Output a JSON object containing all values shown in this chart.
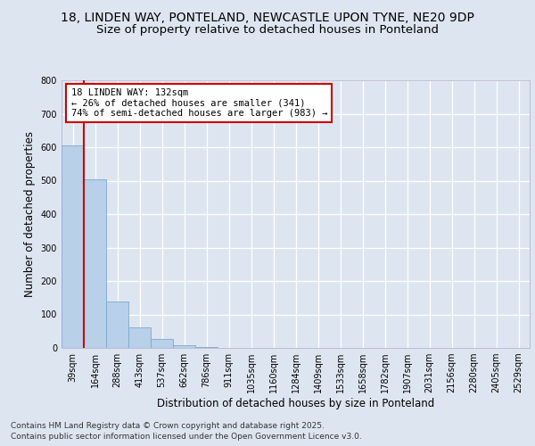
{
  "title_line1": "18, LINDEN WAY, PONTELAND, NEWCASTLE UPON TYNE, NE20 9DP",
  "title_line2": "Size of property relative to detached houses in Ponteland",
  "xlabel": "Distribution of detached houses by size in Ponteland",
  "ylabel": "Number of detached properties",
  "categories": [
    "39sqm",
    "164sqm",
    "288sqm",
    "413sqm",
    "537sqm",
    "662sqm",
    "786sqm",
    "911sqm",
    "1035sqm",
    "1160sqm",
    "1284sqm",
    "1409sqm",
    "1533sqm",
    "1658sqm",
    "1782sqm",
    "1907sqm",
    "2031sqm",
    "2156sqm",
    "2280sqm",
    "2405sqm",
    "2529sqm"
  ],
  "values": [
    605,
    503,
    140,
    62,
    28,
    7,
    2,
    0,
    0,
    0,
    0,
    0,
    0,
    0,
    0,
    0,
    0,
    0,
    0,
    0,
    0
  ],
  "bar_color": "#b8d0e8",
  "bar_edge_color": "#7aaace",
  "annotation_text": "18 LINDEN WAY: 132sqm\n← 26% of detached houses are smaller (341)\n74% of semi-detached houses are larger (983) →",
  "annotation_box_color": "#ffffff",
  "annotation_box_edge": "#cc0000",
  "red_line_color": "#cc0000",
  "background_color": "#dde6f0",
  "plot_background": "#dde6f0",
  "grid_color": "#ffffff",
  "footer_line1": "Contains HM Land Registry data © Crown copyright and database right 2025.",
  "footer_line2": "Contains public sector information licensed under the Open Government Licence v3.0.",
  "ylim": [
    0,
    800
  ],
  "yticks": [
    0,
    100,
    200,
    300,
    400,
    500,
    600,
    700,
    800
  ],
  "title_fontsize": 10,
  "subtitle_fontsize": 9.5,
  "axis_label_fontsize": 8.5,
  "tick_fontsize": 7,
  "annotation_fontsize": 7.5,
  "footer_fontsize": 6.5
}
